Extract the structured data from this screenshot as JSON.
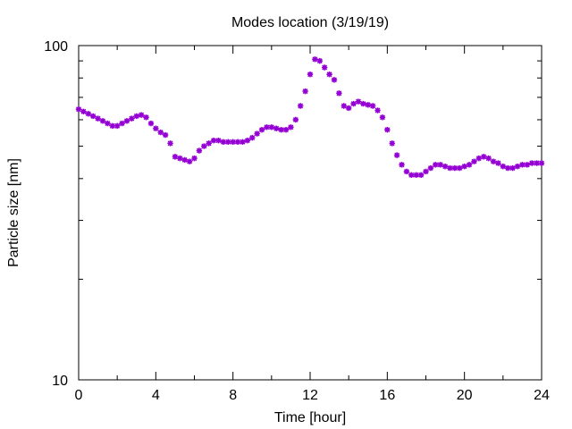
{
  "chart_data": {
    "type": "scatter",
    "title": "Modes location (3/19/19)",
    "xlabel": "Time [hour]",
    "ylabel": "Particle size [nm]",
    "xlim": [
      0,
      24
    ],
    "ylim": [
      10,
      100
    ],
    "yscale": "log",
    "xticks": [
      0,
      4,
      8,
      12,
      16,
      20,
      24
    ],
    "yticks": [
      10,
      100
    ],
    "grid": false,
    "legend": "none",
    "marker": "asterisk",
    "series": [
      {
        "color": "#9400D3",
        "points": [
          [
            0.0,
            64.5
          ],
          [
            0.25,
            63.5
          ],
          [
            0.5,
            62.5
          ],
          [
            0.75,
            61.5
          ],
          [
            1.0,
            60.5
          ],
          [
            1.25,
            59.5
          ],
          [
            1.5,
            58.5
          ],
          [
            1.75,
            57.5
          ],
          [
            2.0,
            57.5
          ],
          [
            2.25,
            58.5
          ],
          [
            2.5,
            59.5
          ],
          [
            2.75,
            60.5
          ],
          [
            3.0,
            61.5
          ],
          [
            3.25,
            62.0
          ],
          [
            3.5,
            61.0
          ],
          [
            3.75,
            58.5
          ],
          [
            4.0,
            56.5
          ],
          [
            4.25,
            55.0
          ],
          [
            4.5,
            54.0
          ],
          [
            4.75,
            51.0
          ],
          [
            5.0,
            46.5
          ],
          [
            5.25,
            46.0
          ],
          [
            5.5,
            45.5
          ],
          [
            5.75,
            45.0
          ],
          [
            6.0,
            46.0
          ],
          [
            6.25,
            48.5
          ],
          [
            6.5,
            50.0
          ],
          [
            6.75,
            51.0
          ],
          [
            7.0,
            52.0
          ],
          [
            7.25,
            52.0
          ],
          [
            7.5,
            51.5
          ],
          [
            7.75,
            51.5
          ],
          [
            8.0,
            51.5
          ],
          [
            8.25,
            51.5
          ],
          [
            8.5,
            51.5
          ],
          [
            8.75,
            52.0
          ],
          [
            9.0,
            53.0
          ],
          [
            9.25,
            54.5
          ],
          [
            9.5,
            56.0
          ],
          [
            9.75,
            57.0
          ],
          [
            10.0,
            57.0
          ],
          [
            10.25,
            56.5
          ],
          [
            10.5,
            56.0
          ],
          [
            10.75,
            56.0
          ],
          [
            11.0,
            57.0
          ],
          [
            11.25,
            60.0
          ],
          [
            11.5,
            66.0
          ],
          [
            11.75,
            73.0
          ],
          [
            12.0,
            82.0
          ],
          [
            12.25,
            91.0
          ],
          [
            12.5,
            90.0
          ],
          [
            12.75,
            86.0
          ],
          [
            13.0,
            82.0
          ],
          [
            13.25,
            79.0
          ],
          [
            13.5,
            72.0
          ],
          [
            13.75,
            66.0
          ],
          [
            14.0,
            65.0
          ],
          [
            14.25,
            67.0
          ],
          [
            14.5,
            68.0
          ],
          [
            14.75,
            67.0
          ],
          [
            15.0,
            66.5
          ],
          [
            15.25,
            66.0
          ],
          [
            15.5,
            64.0
          ],
          [
            15.75,
            61.0
          ],
          [
            16.0,
            56.0
          ],
          [
            16.25,
            51.0
          ],
          [
            16.5,
            47.0
          ],
          [
            16.75,
            44.0
          ],
          [
            17.0,
            42.0
          ],
          [
            17.25,
            41.0
          ],
          [
            17.5,
            41.0
          ],
          [
            17.75,
            41.0
          ],
          [
            18.0,
            42.0
          ],
          [
            18.25,
            43.0
          ],
          [
            18.5,
            44.0
          ],
          [
            18.75,
            44.0
          ],
          [
            19.0,
            43.5
          ],
          [
            19.25,
            43.0
          ],
          [
            19.5,
            43.0
          ],
          [
            19.75,
            43.0
          ],
          [
            20.0,
            43.5
          ],
          [
            20.25,
            44.0
          ],
          [
            20.5,
            45.0
          ],
          [
            20.75,
            46.0
          ],
          [
            21.0,
            46.5
          ],
          [
            21.25,
            46.0
          ],
          [
            21.5,
            45.0
          ],
          [
            21.75,
            44.5
          ],
          [
            22.0,
            43.5
          ],
          [
            22.25,
            43.0
          ],
          [
            22.5,
            43.0
          ],
          [
            22.75,
            43.5
          ],
          [
            23.0,
            44.0
          ],
          [
            23.25,
            44.0
          ],
          [
            23.5,
            44.5
          ],
          [
            23.75,
            44.5
          ],
          [
            24.0,
            44.5
          ]
        ]
      }
    ]
  }
}
